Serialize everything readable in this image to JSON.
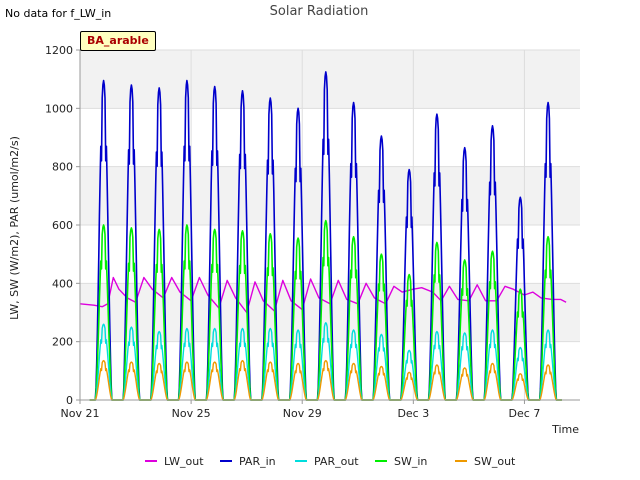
{
  "header": {
    "note": "No data for f_LW_in",
    "badge": "BA_arable"
  },
  "chart_data": {
    "type": "line",
    "title": "Solar Radiation",
    "xlabel": "Time",
    "ylabel": "LW, SW (W/m2), PAR (umol/m2/s)",
    "x_range_days": [
      0,
      18
    ],
    "ylim": [
      0,
      1200
    ],
    "yticks": [
      0,
      200,
      400,
      600,
      800,
      1000,
      1200
    ],
    "xticks": [
      {
        "day": 0,
        "label": "Nov 21"
      },
      {
        "day": 4,
        "label": "Nov 25"
      },
      {
        "day": 8,
        "label": "Nov 29"
      },
      {
        "day": 12,
        "label": "Dec 3"
      },
      {
        "day": 16,
        "label": "Dec 7"
      }
    ],
    "grid": true,
    "legend_position": "bottom",
    "series": [
      {
        "name": "LW_out",
        "color": "#dd00dd"
      },
      {
        "name": "PAR_in",
        "color": "#0000cc"
      },
      {
        "name": "PAR_out",
        "color": "#00dddd"
      },
      {
        "name": "SW_in",
        "color": "#00ee00"
      },
      {
        "name": "SW_out",
        "color": "#ee9900"
      }
    ],
    "daily_peaks": {
      "PAR_in": [
        1095,
        1080,
        1070,
        1095,
        1075,
        1060,
        1035,
        1000,
        1125,
        1020,
        905,
        790,
        980,
        865,
        940,
        695,
        1020
      ],
      "PAR_out": [
        260,
        250,
        235,
        245,
        245,
        245,
        245,
        240,
        265,
        240,
        225,
        170,
        235,
        230,
        240,
        180,
        240
      ],
      "SW_in": [
        600,
        590,
        585,
        600,
        585,
        580,
        570,
        555,
        615,
        560,
        500,
        430,
        540,
        480,
        510,
        380,
        560
      ],
      "SW_out": [
        135,
        130,
        125,
        130,
        130,
        135,
        130,
        125,
        135,
        125,
        115,
        95,
        120,
        110,
        125,
        90,
        120
      ]
    },
    "LW_out_trace": [
      [
        0.0,
        330
      ],
      [
        0.5,
        325
      ],
      [
        0.8,
        320
      ],
      [
        1.0,
        330
      ],
      [
        1.2,
        420
      ],
      [
        1.4,
        380
      ],
      [
        1.7,
        350
      ],
      [
        2.0,
        335
      ],
      [
        2.3,
        420
      ],
      [
        2.6,
        380
      ],
      [
        3.0,
        350
      ],
      [
        3.3,
        420
      ],
      [
        3.6,
        370
      ],
      [
        4.0,
        340
      ],
      [
        4.3,
        420
      ],
      [
        4.6,
        360
      ],
      [
        5.0,
        315
      ],
      [
        5.3,
        410
      ],
      [
        5.6,
        350
      ],
      [
        6.0,
        300
      ],
      [
        6.3,
        405
      ],
      [
        6.6,
        340
      ],
      [
        7.0,
        305
      ],
      [
        7.3,
        410
      ],
      [
        7.6,
        340
      ],
      [
        8.0,
        310
      ],
      [
        8.3,
        415
      ],
      [
        8.6,
        350
      ],
      [
        9.0,
        330
      ],
      [
        9.3,
        410
      ],
      [
        9.6,
        345
      ],
      [
        10.0,
        330
      ],
      [
        10.3,
        400
      ],
      [
        10.6,
        350
      ],
      [
        11.0,
        330
      ],
      [
        11.3,
        390
      ],
      [
        11.6,
        370
      ],
      [
        12.0,
        380
      ],
      [
        12.3,
        385
      ],
      [
        12.7,
        370
      ],
      [
        13.0,
        340
      ],
      [
        13.3,
        390
      ],
      [
        13.6,
        345
      ],
      [
        14.0,
        340
      ],
      [
        14.3,
        395
      ],
      [
        14.6,
        340
      ],
      [
        15.0,
        340
      ],
      [
        15.3,
        390
      ],
      [
        15.6,
        380
      ],
      [
        16.0,
        360
      ],
      [
        16.3,
        370
      ],
      [
        16.6,
        350
      ],
      [
        17.0,
        345
      ],
      [
        17.3,
        345
      ],
      [
        17.5,
        335
      ]
    ]
  }
}
